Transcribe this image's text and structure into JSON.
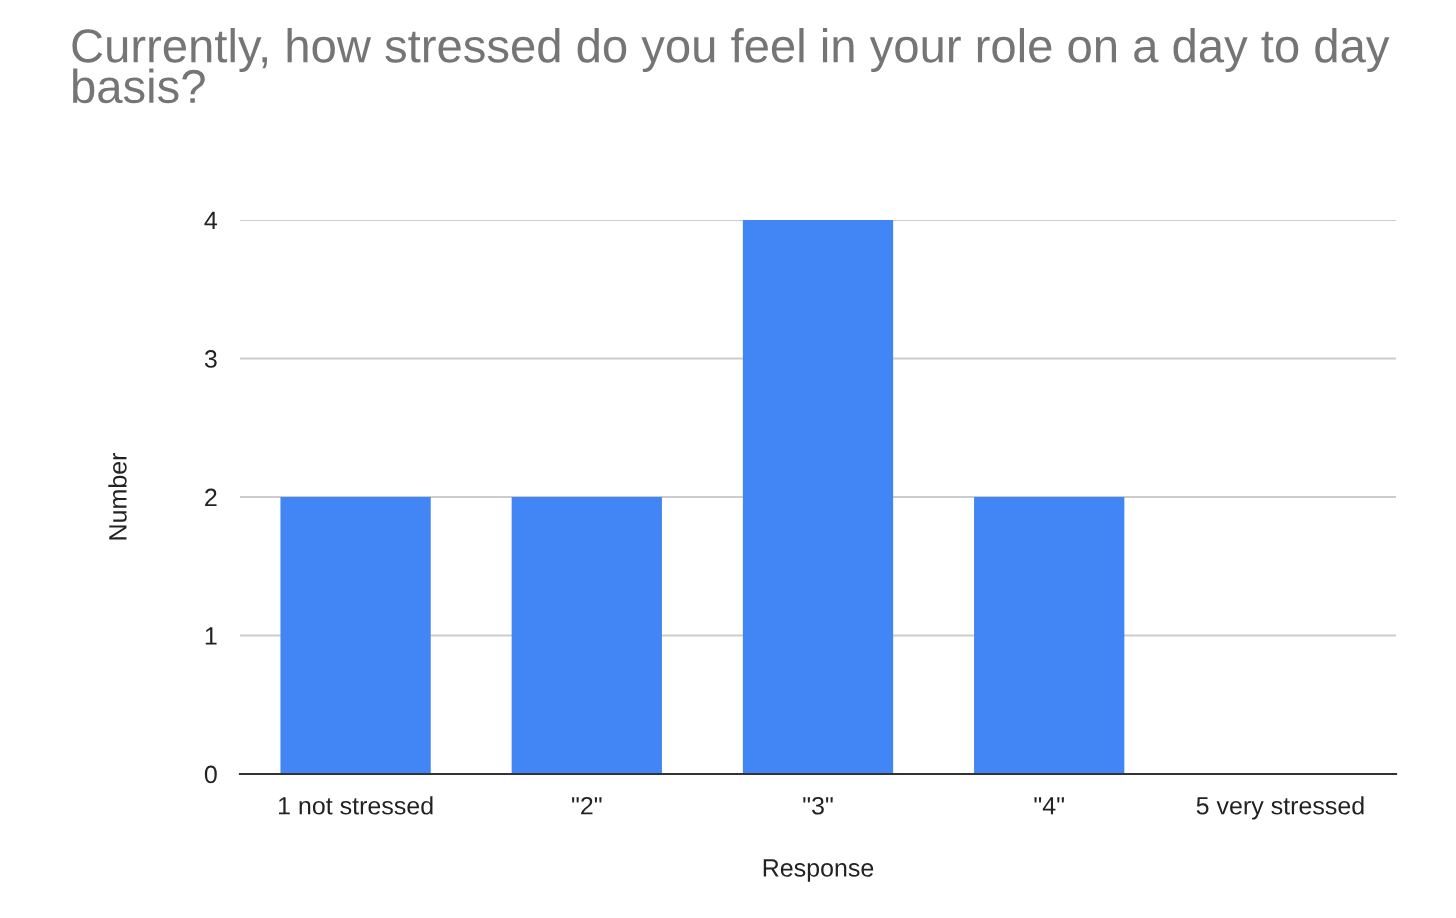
{
  "chart_data": {
    "type": "bar",
    "title": "Currently, how stressed do you feel in your role on a day to day basis?",
    "xlabel": "Response",
    "ylabel": "Number",
    "categories": [
      "1 not stressed",
      "\"2\"",
      "\"3\"",
      "\"4\"",
      "5 very stressed"
    ],
    "values": [
      2,
      2,
      4,
      2,
      0
    ],
    "color": "#4285f4",
    "ylim": [
      0,
      4
    ],
    "yticks": [
      0,
      1,
      2,
      3,
      4
    ],
    "grid": "y",
    "legend": false
  }
}
